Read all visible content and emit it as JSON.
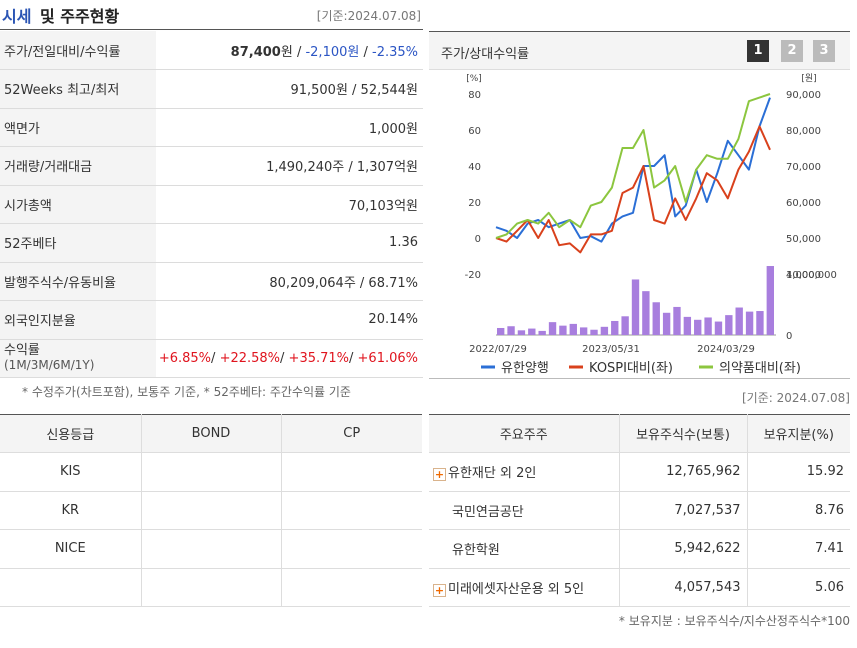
{
  "header": {
    "title_accent": "시세",
    "title_rest": "및 주주현황",
    "date": "[기준:2024.07.08]"
  },
  "info_rows": {
    "price": {
      "label": "주가/전일대비/수익률",
      "price": "87,400",
      "price_unit": "원",
      "change": "-2,100원",
      "rate": "-2.35%"
    },
    "week52": {
      "label": "52Weeks 최고/최저",
      "value": "91,500원 / 52,544원"
    },
    "par": {
      "label": "액면가",
      "value": "1,000원"
    },
    "volume": {
      "label": "거래량/거래대금",
      "value": "1,490,240주 / 1,307억원"
    },
    "mktcap": {
      "label": "시가총액",
      "value": "70,103억원"
    },
    "beta": {
      "label": "52주베타",
      "value": "1.36"
    },
    "shares": {
      "label": "발행주식수/유동비율",
      "value": "80,209,064주 / 68.71%"
    },
    "foreign": {
      "label": "외국인지분율",
      "value": "20.14%"
    },
    "returns": {
      "label": "수익률",
      "sublabel": "(1M/3M/6M/1Y)",
      "r1m": "+6.85%",
      "r3m": "+22.58%",
      "r6m": "+35.71%",
      "r1y": "+61.06%"
    }
  },
  "note_left": "* 수정주가(차트포함), 보통주 기준, * 52주베타: 주간수익률 기준",
  "chart_panel": {
    "title": "주가/상대수익률",
    "buttons": [
      "1",
      "2",
      "3"
    ]
  },
  "chart_data": {
    "type": "line",
    "left_unit": "[%]",
    "right_unit": "[원]",
    "left_ticks": [
      "80",
      "60",
      "40",
      "20",
      "0",
      "-20"
    ],
    "right_ticks": [
      "90,000",
      "80,000",
      "70,000",
      "60,000",
      "50,000",
      "40,000"
    ],
    "volume_ticks": [
      "1,000,000",
      "0"
    ],
    "x_ticks": [
      "2022/07/29",
      "2023/05/31",
      "2024/03/29"
    ],
    "ylim_left": [
      -20,
      80
    ],
    "series": [
      {
        "name": "유한양행",
        "color": "#2b6fd6",
        "values": [
          6,
          4,
          0,
          8,
          10,
          6,
          8,
          10,
          0,
          1,
          -2,
          8,
          12,
          14,
          40,
          40,
          46,
          12,
          18,
          38,
          20,
          36,
          54,
          46,
          38,
          62,
          78
        ]
      },
      {
        "name": "KOSPI대비(좌)",
        "color": "#d9411c",
        "values": [
          0,
          -2,
          4,
          10,
          0,
          10,
          -4,
          -3,
          -8,
          2,
          2,
          4,
          25,
          28,
          40,
          10,
          8,
          22,
          10,
          22,
          36,
          32,
          22,
          38,
          48,
          62,
          49
        ]
      },
      {
        "name": "의약품대비(좌)",
        "color": "#8cc63f",
        "values": [
          0,
          2,
          8,
          10,
          8,
          14,
          6,
          10,
          6,
          18,
          20,
          28,
          50,
          50,
          60,
          28,
          32,
          40,
          20,
          38,
          46,
          44,
          44,
          55,
          76,
          78,
          80
        ]
      }
    ],
    "volume": {
      "name": "거래량",
      "color": "#a87ede",
      "values": [
        120000,
        150000,
        80000,
        110000,
        70000,
        220000,
        160000,
        190000,
        130000,
        90000,
        140000,
        240000,
        320000,
        950000,
        750000,
        560000,
        380000,
        480000,
        310000,
        260000,
        300000,
        230000,
        340000,
        470000,
        400000,
        410000,
        1180000
      ]
    }
  },
  "date2": "[기준: 2024.07.08]",
  "credit": {
    "headers": [
      "신용등급",
      "BOND",
      "CP"
    ],
    "rows": [
      [
        "KIS",
        "",
        ""
      ],
      [
        "KR",
        "",
        ""
      ],
      [
        "NICE",
        "",
        ""
      ],
      [
        "",
        "",
        ""
      ]
    ]
  },
  "holders": {
    "headers": [
      "주요주주",
      "보유주식수(보통)",
      "보유지분(%)"
    ],
    "rows": [
      {
        "name": "유한재단 외 2인",
        "shares": "12,765,962",
        "pct": "15.92",
        "expandable": true
      },
      {
        "name": "국민연금공단",
        "shares": "7,027,537",
        "pct": "8.76",
        "expandable": false
      },
      {
        "name": "유한학원",
        "shares": "5,942,622",
        "pct": "7.41",
        "expandable": false
      },
      {
        "name": "미래에셋자산운용 외 5인",
        "shares": "4,057,543",
        "pct": "5.06",
        "expandable": true
      }
    ]
  },
  "note_right": "* 보유지분 : 보유주식수/지수산정주식수*100"
}
